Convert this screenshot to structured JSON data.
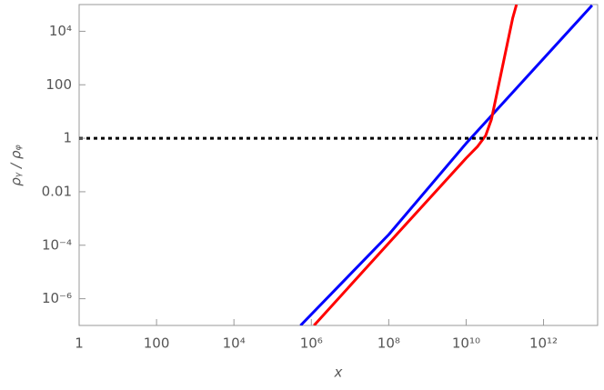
{
  "chart_data": {
    "type": "line",
    "xlabel": "x",
    "ylabel": "ρᵧ / ρᵩ",
    "xscale": "log",
    "yscale": "log",
    "xlim": [
      1,
      25000000000000
    ],
    "ylim": [
      1e-07,
      100000
    ],
    "xticks": [
      1,
      100,
      {
        "value": 10000,
        "label": "10⁴"
      },
      {
        "value": 1000000,
        "label": "10⁶"
      },
      {
        "value": 100000000,
        "label": "10⁸"
      },
      {
        "value": 10000000000,
        "label": "10¹⁰"
      },
      {
        "value": 1000000000000,
        "label": "10¹²"
      }
    ],
    "yticks": [
      {
        "value": 1e-06,
        "label": "10⁻⁶"
      },
      {
        "value": 0.0001,
        "label": "10⁻⁴"
      },
      0.01,
      1,
      100,
      {
        "value": 10000,
        "label": "10⁴"
      }
    ],
    "hline": {
      "value": 1,
      "color": "#000000"
    },
    "series": [
      {
        "color": "#0000ff",
        "x": [
          525000,
          100000000,
          10000000000,
          18000000000000
        ],
        "values": [
          1e-07,
          0.00025,
          0.64,
          93000
        ]
      },
      {
        "color": "#ff0000",
        "x": [
          1170000,
          100000000,
          10000000000,
          20000000000,
          32000000000,
          45000000000,
          63000000000,
          100000000000,
          160000000000,
          200000000000
        ],
        "values": [
          1e-07,
          0.00012,
          0.18,
          0.5,
          1.26,
          5,
          50,
          1260,
          32000,
          100000
        ]
      }
    ]
  }
}
